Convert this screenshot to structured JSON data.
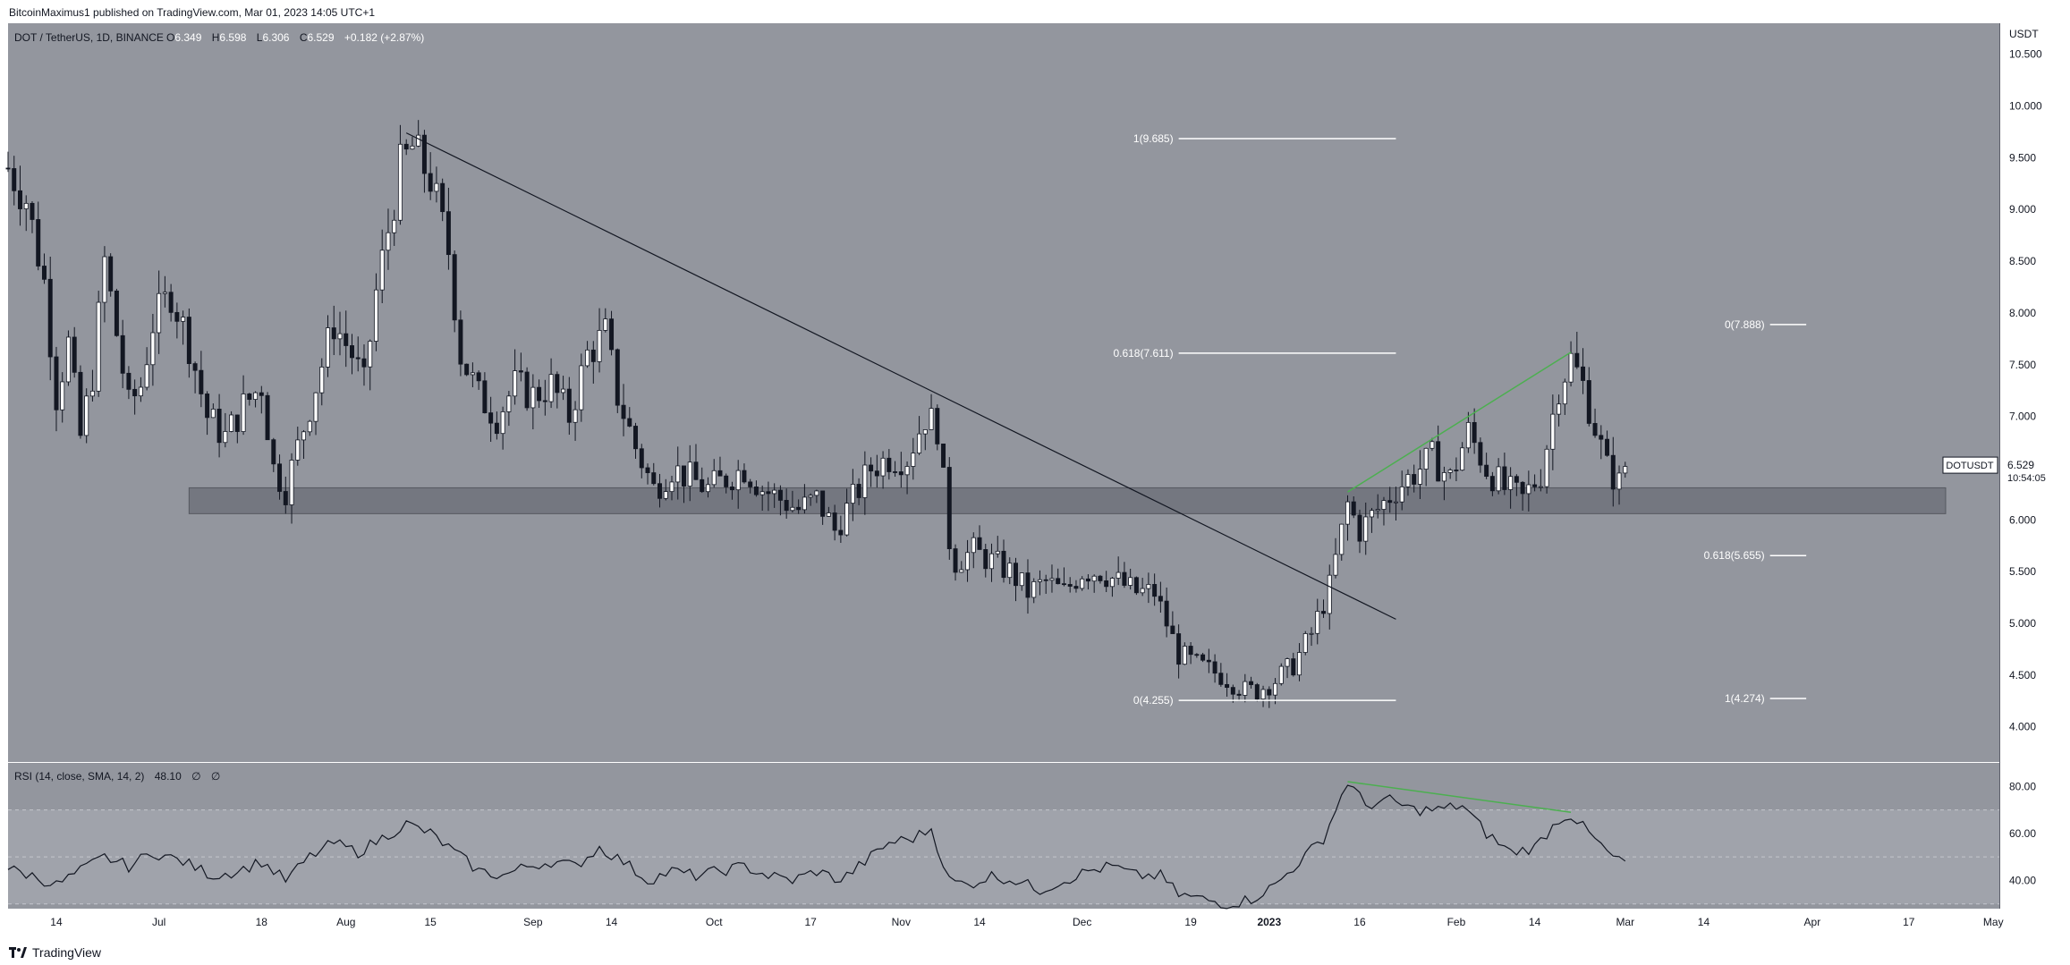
{
  "header": {
    "published": "BitcoinMaximus1 published on TradingView.com, Mar 01, 2023 14:05 UTC+1"
  },
  "footer": {
    "brand": "TradingView"
  },
  "colors": {
    "background": "#93969e",
    "upCandle": "#ffffff",
    "downCandle": "#131722",
    "trendline": "#131722",
    "divergence": "#4caf50",
    "supportZone": "#6f727a"
  },
  "legend": {
    "symbol": "DOT / TetherUS, 1D, BINANCE",
    "o_label": "O",
    "o": "6.349",
    "h_label": "H",
    "h": "6.598",
    "l_label": "L",
    "l": "6.306",
    "c_label": "C",
    "c": "6.529",
    "change": "+0.182 (+2.87%)"
  },
  "rsi_legend": {
    "name": "RSI (14, close, SMA, 14, 2)",
    "value": "48.10",
    "extra1": "∅",
    "extra2": "∅"
  },
  "price_axis": {
    "unit": "USDT",
    "ticks": [
      "10.500",
      "10.000",
      "9.500",
      "9.000",
      "8.500",
      "8.000",
      "7.500",
      "7.000",
      "6.500",
      "6.000",
      "5.500",
      "5.000",
      "4.500",
      "4.000"
    ]
  },
  "rsi_axis": {
    "ticks": [
      "80.00",
      "60.00",
      "40.00"
    ]
  },
  "time_axis": {
    "ticks": [
      {
        "label": "14",
        "date": "2022-06-14"
      },
      {
        "label": "Jul",
        "date": "2022-07-01"
      },
      {
        "label": "18",
        "date": "2022-07-18"
      },
      {
        "label": "Aug",
        "date": "2022-08-01"
      },
      {
        "label": "15",
        "date": "2022-08-15"
      },
      {
        "label": "Sep",
        "date": "2022-09-01"
      },
      {
        "label": "14",
        "date": "2022-09-14"
      },
      {
        "label": "Oct",
        "date": "2022-10-01"
      },
      {
        "label": "17",
        "date": "2022-10-17"
      },
      {
        "label": "Nov",
        "date": "2022-11-01"
      },
      {
        "label": "14",
        "date": "2022-11-14"
      },
      {
        "label": "Dec",
        "date": "2022-12-01"
      },
      {
        "label": "19",
        "date": "2022-12-19"
      },
      {
        "label": "2023",
        "date": "2023-01-01"
      },
      {
        "label": "16",
        "date": "2023-01-16"
      },
      {
        "label": "Feb",
        "date": "2023-02-01"
      },
      {
        "label": "14",
        "date": "2023-02-14"
      },
      {
        "label": "Mar",
        "date": "2023-03-01"
      },
      {
        "label": "14",
        "date": "2023-03-14"
      },
      {
        "label": "Apr",
        "date": "2023-04-01"
      },
      {
        "label": "17",
        "date": "2023-04-17"
      },
      {
        "label": "May",
        "date": "2023-05-01"
      }
    ]
  },
  "last_price": {
    "symbol": "DOTUSDT",
    "price": "6.529",
    "countdown": "10:54:05"
  },
  "chart_data": {
    "type": "candlestick",
    "x_range": [
      "2022-06-06",
      "2023-05-02"
    ],
    "y_range": [
      3.66,
      10.8
    ],
    "rsi_range": [
      28,
      90
    ],
    "support_zone": [
      6.06,
      6.31
    ],
    "trendline": {
      "start": {
        "date": "2022-08-11",
        "price": 9.74
      },
      "end": {
        "date": "2023-01-22",
        "price": 5.04
      }
    },
    "fib_levels": [
      {
        "label": "1(9.685)",
        "date_from": "2022-12-17",
        "date_to": "2023-01-22",
        "price": 9.685
      },
      {
        "label": "0.618(7.611)",
        "date_from": "2022-12-17",
        "date_to": "2023-01-22",
        "price": 7.611
      },
      {
        "label": "0(4.255)",
        "date_from": "2022-12-17",
        "date_to": "2023-01-22",
        "price": 4.255
      },
      {
        "label": "0(7.888)",
        "date_from": "2023-03-25",
        "date_to": "2023-03-31",
        "price": 7.888
      },
      {
        "label": "0.618(5.655)",
        "date_from": "2023-03-25",
        "date_to": "2023-03-31",
        "price": 5.655
      },
      {
        "label": "1(4.274)",
        "date_from": "2023-03-25",
        "date_to": "2023-03-31",
        "price": 4.274
      }
    ],
    "price_divergence": {
      "start": {
        "date": "2023-01-14",
        "price": 6.27
      },
      "end": {
        "date": "2023-02-20",
        "price": 7.62
      }
    },
    "rsi_divergence": {
      "start": {
        "date": "2023-01-14",
        "value": 82
      },
      "end": {
        "date": "2023-02-20",
        "value": 69
      }
    },
    "rsi_band": [
      30,
      70
    ],
    "rsi_mid": 50,
    "price_path": [
      [
        "2022-06-06",
        9.4
      ],
      [
        "2022-06-09",
        9.1
      ],
      [
        "2022-06-12",
        8.3
      ],
      [
        "2022-06-14",
        7.2
      ],
      [
        "2022-06-16",
        7.7
      ],
      [
        "2022-06-18",
        6.8
      ],
      [
        "2022-06-20",
        7.4
      ],
      [
        "2022-06-22",
        8.5
      ],
      [
        "2022-06-24",
        7.8
      ],
      [
        "2022-06-26",
        7.1
      ],
      [
        "2022-06-28",
        7.3
      ],
      [
        "2022-06-30",
        7.9
      ],
      [
        "2022-07-03",
        8.2
      ],
      [
        "2022-07-06",
        7.7
      ],
      [
        "2022-07-09",
        7.0
      ],
      [
        "2022-07-12",
        6.8
      ],
      [
        "2022-07-15",
        7.1
      ],
      [
        "2022-07-18",
        7.3
      ],
      [
        "2022-07-20",
        6.5
      ],
      [
        "2022-07-22",
        6.3
      ],
      [
        "2022-07-25",
        6.9
      ],
      [
        "2022-07-28",
        7.5
      ],
      [
        "2022-07-30",
        7.9
      ],
      [
        "2022-08-02",
        7.6
      ],
      [
        "2022-08-04",
        7.3
      ],
      [
        "2022-08-06",
        8.2
      ],
      [
        "2022-08-08",
        8.8
      ],
      [
        "2022-08-10",
        9.4
      ],
      [
        "2022-08-12",
        9.6
      ],
      [
        "2022-08-15",
        9.3
      ],
      [
        "2022-08-18",
        8.6
      ],
      [
        "2022-08-20",
        7.6
      ],
      [
        "2022-08-23",
        7.2
      ],
      [
        "2022-08-26",
        7.0
      ],
      [
        "2022-08-29",
        7.3
      ],
      [
        "2022-09-01",
        7.2
      ],
      [
        "2022-09-04",
        7.3
      ],
      [
        "2022-09-07",
        7.0
      ],
      [
        "2022-09-10",
        7.6
      ],
      [
        "2022-09-13",
        7.8
      ],
      [
        "2022-09-15",
        7.2
      ],
      [
        "2022-09-18",
        6.7
      ],
      [
        "2022-09-21",
        6.3
      ],
      [
        "2022-09-24",
        6.5
      ],
      [
        "2022-09-27",
        6.4
      ],
      [
        "2022-09-30",
        6.3
      ],
      [
        "2022-10-03",
        6.4
      ],
      [
        "2022-10-06",
        6.5
      ],
      [
        "2022-10-09",
        6.3
      ],
      [
        "2022-10-12",
        6.2
      ],
      [
        "2022-10-15",
        6.1
      ],
      [
        "2022-10-18",
        6.2
      ],
      [
        "2022-10-21",
        5.9
      ],
      [
        "2022-10-24",
        6.2
      ],
      [
        "2022-10-27",
        6.5
      ],
      [
        "2022-10-30",
        6.6
      ],
      [
        "2022-11-02",
        6.6
      ],
      [
        "2022-11-05",
        7.0
      ],
      [
        "2022-11-07",
        6.9
      ],
      [
        "2022-11-09",
        5.8
      ],
      [
        "2022-11-10",
        5.6
      ],
      [
        "2022-11-13",
        5.7
      ],
      [
        "2022-11-16",
        5.6
      ],
      [
        "2022-11-19",
        5.5
      ],
      [
        "2022-11-22",
        5.3
      ],
      [
        "2022-11-25",
        5.4
      ],
      [
        "2022-11-28",
        5.3
      ],
      [
        "2022-12-01",
        5.5
      ],
      [
        "2022-12-04",
        5.5
      ],
      [
        "2022-12-07",
        5.4
      ],
      [
        "2022-12-10",
        5.3
      ],
      [
        "2022-12-13",
        5.3
      ],
      [
        "2022-12-15",
        5.0
      ],
      [
        "2022-12-17",
        4.7
      ],
      [
        "2022-12-20",
        4.6
      ],
      [
        "2022-12-24",
        4.5
      ],
      [
        "2022-12-28",
        4.35
      ],
      [
        "2022-12-30",
        4.35
      ],
      [
        "2023-01-02",
        4.45
      ],
      [
        "2023-01-05",
        4.6
      ],
      [
        "2023-01-08",
        4.9
      ],
      [
        "2023-01-11",
        5.35
      ],
      [
        "2023-01-14",
        6.15
      ],
      [
        "2023-01-16",
        5.9
      ],
      [
        "2023-01-19",
        6.1
      ],
      [
        "2023-01-22",
        6.3
      ],
      [
        "2023-01-25",
        6.45
      ],
      [
        "2023-01-28",
        6.6
      ],
      [
        "2023-01-31",
        6.4
      ],
      [
        "2023-02-03",
        6.85
      ],
      [
        "2023-02-06",
        6.5
      ],
      [
        "2023-02-09",
        6.3
      ],
      [
        "2023-02-12",
        6.2
      ],
      [
        "2023-02-15",
        6.45
      ],
      [
        "2023-02-18",
        7.3
      ],
      [
        "2023-02-20",
        7.55
      ],
      [
        "2023-02-22",
        7.3
      ],
      [
        "2023-02-24",
        6.9
      ],
      [
        "2023-02-26",
        6.5
      ],
      [
        "2023-02-28",
        6.35
      ],
      [
        "2023-03-01",
        6.53
      ]
    ],
    "rsi_path": [
      [
        "2022-06-06",
        45
      ],
      [
        "2022-06-10",
        42
      ],
      [
        "2022-06-14",
        38
      ],
      [
        "2022-06-18",
        44
      ],
      [
        "2022-06-22",
        50
      ],
      [
        "2022-06-26",
        46
      ],
      [
        "2022-06-30",
        52
      ],
      [
        "2022-07-05",
        48
      ],
      [
        "2022-07-10",
        42
      ],
      [
        "2022-07-14",
        44
      ],
      [
        "2022-07-18",
        48
      ],
      [
        "2022-07-22",
        40
      ],
      [
        "2022-07-26",
        50
      ],
      [
        "2022-07-30",
        56
      ],
      [
        "2022-08-03",
        52
      ],
      [
        "2022-08-07",
        58
      ],
      [
        "2022-08-11",
        64
      ],
      [
        "2022-08-15",
        60
      ],
      [
        "2022-08-19",
        52
      ],
      [
        "2022-08-23",
        44
      ],
      [
        "2022-08-27",
        42
      ],
      [
        "2022-08-31",
        46
      ],
      [
        "2022-09-04",
        48
      ],
      [
        "2022-09-08",
        46
      ],
      [
        "2022-09-12",
        54
      ],
      [
        "2022-09-16",
        48
      ],
      [
        "2022-09-20",
        40
      ],
      [
        "2022-09-24",
        44
      ],
      [
        "2022-09-28",
        42
      ],
      [
        "2022-10-02",
        44
      ],
      [
        "2022-10-06",
        46
      ],
      [
        "2022-10-10",
        42
      ],
      [
        "2022-10-14",
        40
      ],
      [
        "2022-10-18",
        44
      ],
      [
        "2022-10-22",
        40
      ],
      [
        "2022-10-26",
        48
      ],
      [
        "2022-10-30",
        56
      ],
      [
        "2022-11-03",
        58
      ],
      [
        "2022-11-06",
        62
      ],
      [
        "2022-11-09",
        40
      ],
      [
        "2022-11-12",
        38
      ],
      [
        "2022-11-16",
        42
      ],
      [
        "2022-11-20",
        40
      ],
      [
        "2022-11-24",
        36
      ],
      [
        "2022-11-28",
        40
      ],
      [
        "2022-12-02",
        44
      ],
      [
        "2022-12-06",
        46
      ],
      [
        "2022-12-10",
        42
      ],
      [
        "2022-12-14",
        42
      ],
      [
        "2022-12-17",
        34
      ],
      [
        "2022-12-21",
        32
      ],
      [
        "2022-12-25",
        30
      ],
      [
        "2022-12-29",
        32
      ],
      [
        "2023-01-02",
        38
      ],
      [
        "2023-01-06",
        48
      ],
      [
        "2023-01-10",
        58
      ],
      [
        "2023-01-14",
        82
      ],
      [
        "2023-01-17",
        72
      ],
      [
        "2023-01-21",
        74
      ],
      [
        "2023-01-25",
        70
      ],
      [
        "2023-01-29",
        70
      ],
      [
        "2023-02-02",
        72
      ],
      [
        "2023-02-06",
        60
      ],
      [
        "2023-02-10",
        52
      ],
      [
        "2023-02-14",
        54
      ],
      [
        "2023-02-18",
        66
      ],
      [
        "2023-02-20",
        68
      ],
      [
        "2023-02-23",
        60
      ],
      [
        "2023-02-26",
        52
      ],
      [
        "2023-02-28",
        48
      ],
      [
        "2023-03-01",
        48
      ]
    ]
  }
}
